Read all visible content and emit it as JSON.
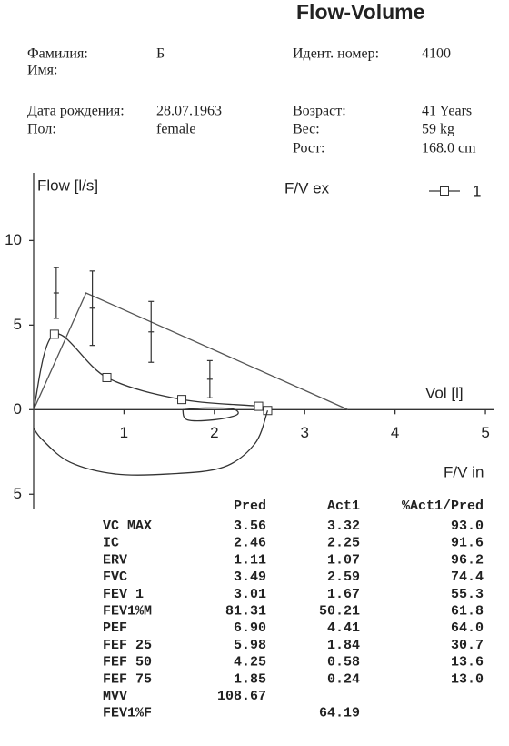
{
  "header": {
    "title": "Flow-Volume",
    "left": [
      {
        "label": "Фамилия:",
        "value": "Б"
      },
      {
        "label": "Имя:"
      },
      {
        "label": "Дата рождения:",
        "value": "28.07.1963"
      },
      {
        "label": "Пол:",
        "value": "female"
      }
    ],
    "right": [
      {
        "label": "Идент. номер:",
        "value": "4100"
      },
      {
        "label": "Возраст:",
        "value": "41 Years"
      },
      {
        "label": "Вес:",
        "value": "59 kg"
      },
      {
        "label": "Рост:",
        "value": "168.0 cm"
      }
    ]
  },
  "chart_data": {
    "type": "line",
    "y_label": "Flow [l/s]",
    "x_label": "Vol [l]",
    "annotations": [
      "F/V ex",
      "F/V in"
    ],
    "xlim": [
      0,
      5.1
    ],
    "ylim": [
      -5.9,
      14
    ],
    "xticks": [
      1,
      2,
      3,
      4,
      5
    ],
    "yticks": [
      {
        "value": -5,
        "label": "5"
      },
      0,
      5,
      10
    ],
    "legend": "top-right",
    "series": [
      {
        "name": "1",
        "color": "#333",
        "marker": "square",
        "curve": "smooth",
        "x": [
          0,
          0.23,
          0.81,
          1.64,
          2.49,
          2.59
        ],
        "values": [
          0,
          4.46,
          1.9,
          0.6,
          0.2,
          -0.05
        ]
      },
      {
        "color": "#333",
        "curve": "smooth",
        "x": [
          2.59,
          2.45,
          2.1,
          1.5,
          0.9,
          0.4,
          0.1,
          0
        ],
        "values": [
          -0.05,
          -2.0,
          -3.4,
          -3.8,
          -3.8,
          -3.1,
          -1.8,
          -1.1
        ]
      },
      {
        "color": "#333",
        "curve": "smooth",
        "x": [
          1.65,
          1.7,
          2.0,
          2.25,
          2.2,
          1.9,
          1.65
        ],
        "values": [
          0,
          -0.6,
          -0.6,
          -0.3,
          0.05,
          0.1,
          0
        ]
      },
      {
        "color": "#555",
        "curve": "linear",
        "x": [
          0,
          0.58,
          3.48
        ],
        "values": [
          0,
          6.9,
          0
        ]
      }
    ],
    "error_bars": {
      "x": [
        0.25,
        0.65,
        1.3,
        1.95
      ],
      "values": [
        6.9,
        6.0,
        4.6,
        1.8
      ],
      "errors": [
        1.5,
        2.2,
        1.8,
        1.1
      ]
    }
  },
  "table": {
    "headers": [
      "Pred",
      "Act1",
      "%Act1/Pred"
    ],
    "rows": [
      [
        "VC MAX",
        "3.56",
        "3.32",
        "93.0"
      ],
      [
        "IC",
        "2.46",
        "2.25",
        "91.6"
      ],
      [
        "ERV",
        "1.11",
        "1.07",
        "96.2"
      ],
      [
        "FVC",
        "3.49",
        "2.59",
        "74.4"
      ],
      [
        "FEV 1",
        "3.01",
        "1.67",
        "55.3"
      ],
      [
        "FEV1%M",
        "81.31",
        "50.21",
        "61.8"
      ],
      [
        "PEF",
        "6.90",
        "4.41",
        "64.0"
      ],
      [
        "FEF 25",
        "5.98",
        "1.84",
        "30.7"
      ],
      [
        "FEF 50",
        "4.25",
        "0.58",
        "13.6"
      ],
      [
        "FEF 75",
        "1.85",
        "0.24",
        "13.0"
      ],
      [
        "MVV",
        "108.67",
        null,
        null
      ],
      [
        "FEV1%F",
        null,
        "64.19",
        null
      ]
    ]
  }
}
